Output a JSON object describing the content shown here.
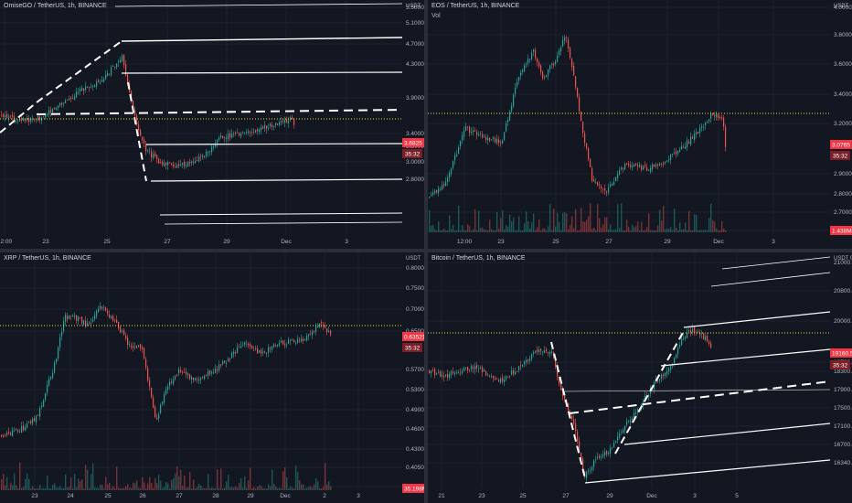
{
  "colors": {
    "bg": "#131722",
    "up": "#26a69a",
    "down": "#ef5350",
    "text": "#b2b5be",
    "line": "#ffffff",
    "price_line": "#f0e130",
    "badge": "#f23645"
  },
  "panels": [
    {
      "title": "OmiseGO / TetherUS, 1h, BINANCE",
      "subtitle": "",
      "currency": "USDT",
      "y_ticks": [
        "5.5000",
        "5.1000",
        "4.7000",
        "4.3000",
        "3.9000",
        "3.4000",
        "3.2000",
        "3.0000",
        "2.8000"
      ],
      "x_ticks": [
        "12:00",
        "23",
        "25",
        "27",
        "29",
        "Dec",
        "3"
      ],
      "price_label": "3.6825",
      "countdown_label": "35:32"
    },
    {
      "title": "EOS / TetherUS, 1h, BINANCE",
      "subtitle": "Vol",
      "currency": "USDT",
      "y_ticks": [
        "4.0000",
        "3.8000",
        "3.6000",
        "3.4000",
        "3.2000",
        "2.9000",
        "2.8000",
        "2.7000",
        "2.6100"
      ],
      "x_ticks": [
        "12:00",
        "23",
        "25",
        "27",
        "29",
        "Dec",
        "3"
      ],
      "price_label": "3.0765",
      "countdown_label": "35:32",
      "volume_label": "1.438M"
    },
    {
      "title": "XRP / TetherUS, 1h, BINANCE",
      "subtitle": "",
      "currency": "USDT",
      "y_ticks": [
        "0.80000",
        "0.75000",
        "0.70000",
        "0.65000",
        "0.57000",
        "0.53000",
        "0.49000",
        "0.46000",
        "0.43000",
        "0.40500",
        "0.38000"
      ],
      "x_ticks": [
        "23",
        "24",
        "25",
        "26",
        "27",
        "28",
        "29",
        "Dec",
        "2",
        "3"
      ],
      "price_label": "0.63521",
      "countdown_label": "35:32",
      "volume_label": "35.198M"
    },
    {
      "title": "Bitcoin / TetherUS, 1h, BINANCE",
      "subtitle": "",
      "currency": "USDT",
      "currency_value": "0",
      "y_ticks": [
        "21000.00",
        "20800.00",
        "20000.00",
        "18700.00",
        "18300.00",
        "17900.00",
        "17500.00",
        "17100.00",
        "16700.00",
        "16340.00"
      ],
      "x_ticks": [
        "21",
        "23",
        "25",
        "27",
        "29",
        "Dec",
        "3",
        "5"
      ],
      "price_label": "19160.52",
      "countdown_label": "35:32"
    }
  ]
}
